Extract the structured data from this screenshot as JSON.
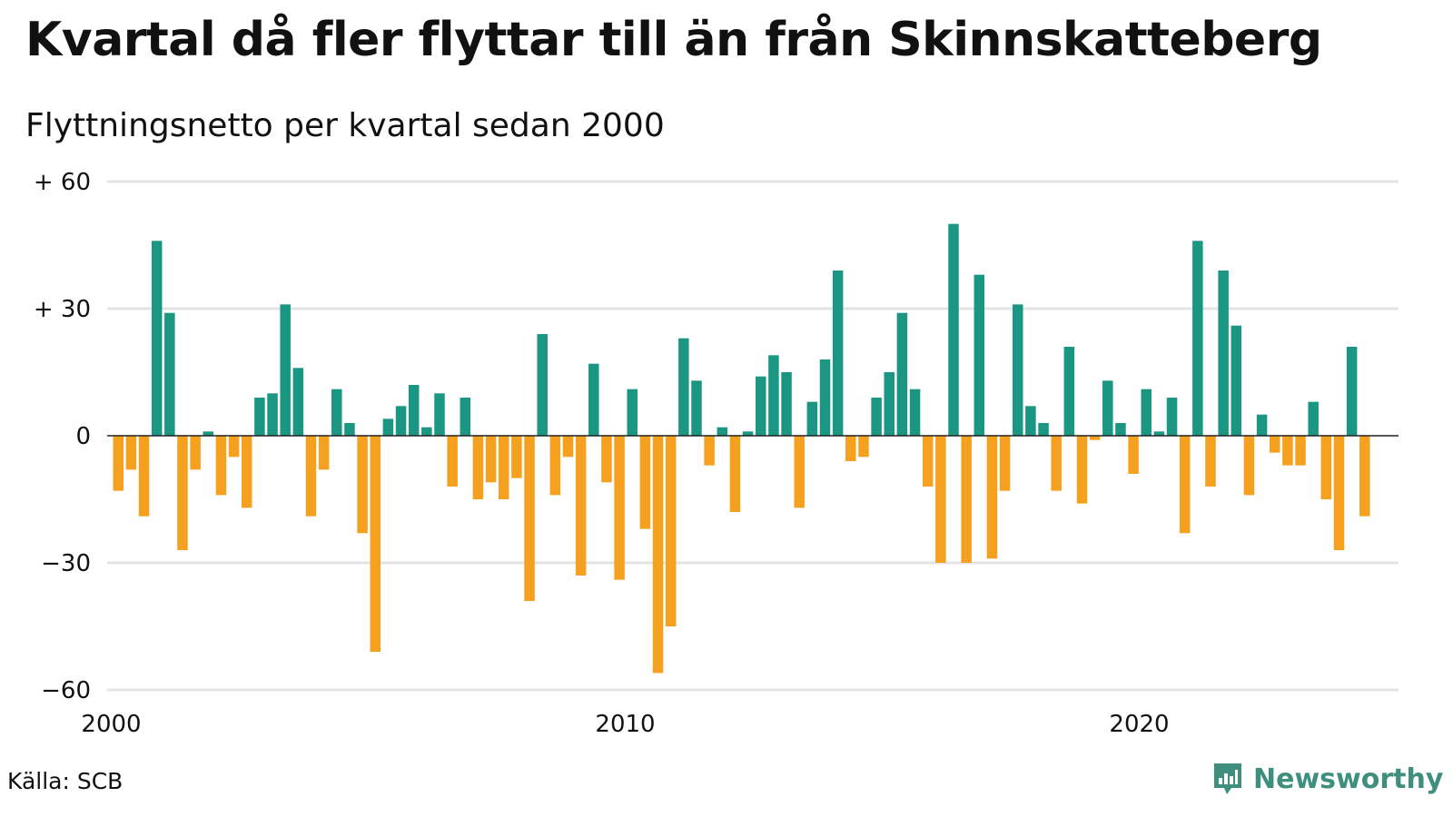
{
  "title": "Kvartal då fler flyttar till än från Skinnskatteberg",
  "subtitle": "Flyttningsnetto per kvartal sedan 2000",
  "source": "Källa: SCB",
  "brand": {
    "name": "Newsworthy",
    "icon": "newsworthy-logo-icon",
    "color": "#3f8f7f"
  },
  "chart_data": {
    "type": "bar",
    "x_start": "2000 Q1",
    "x_ticks": [
      "2000",
      "2010",
      "2020"
    ],
    "y_ticks": [
      "+ 60",
      "+ 30",
      "0",
      "−30",
      "−60"
    ],
    "y_tick_values": [
      60,
      30,
      0,
      -30,
      -60
    ],
    "ylim": [
      -60,
      60
    ],
    "grid": true,
    "colors": {
      "positive": "#1a9683",
      "negative": "#f5a01e"
    },
    "values": [
      -13,
      -8,
      -19,
      46,
      29,
      -27,
      -8,
      1,
      -14,
      -5,
      -17,
      9,
      10,
      31,
      16,
      -19,
      -8,
      11,
      3,
      -23,
      -51,
      4,
      7,
      12,
      2,
      10,
      -12,
      9,
      -15,
      -11,
      -15,
      -10,
      -39,
      24,
      -14,
      -5,
      -33,
      17,
      -11,
      -34,
      11,
      -22,
      -56,
      -45,
      23,
      13,
      -7,
      2,
      -18,
      1,
      14,
      19,
      15,
      -17,
      8,
      18,
      39,
      -6,
      -5,
      9,
      15,
      29,
      11,
      -12,
      -30,
      50,
      -30,
      38,
      -29,
      -13,
      31,
      7,
      3,
      -13,
      21,
      -16,
      -1,
      13,
      3,
      -9,
      11,
      1,
      9,
      -23,
      46,
      -12,
      39,
      26,
      -14,
      5,
      -4,
      -7,
      -7,
      8,
      -15,
      -27,
      21,
      -19
    ]
  }
}
